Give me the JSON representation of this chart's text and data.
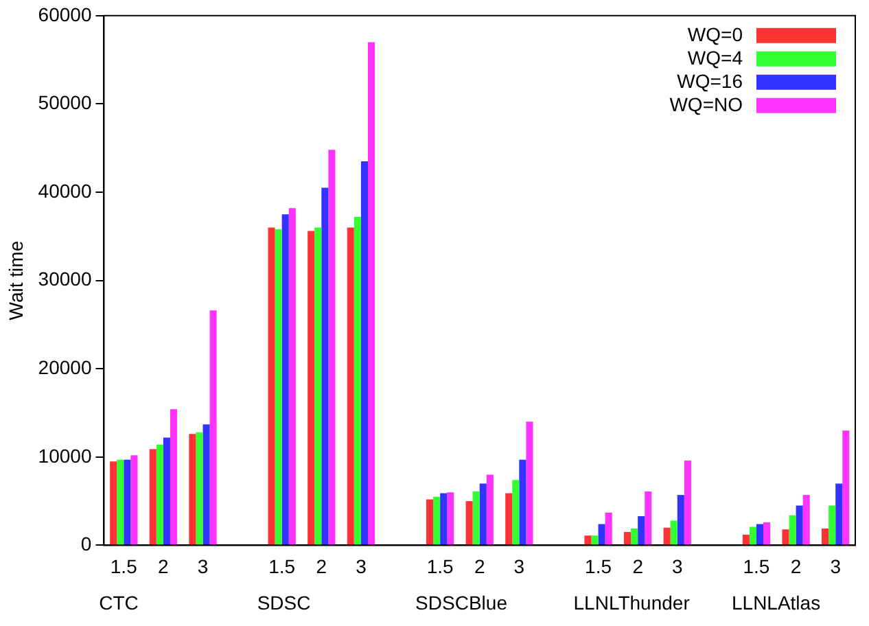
{
  "chart_data": {
    "type": "bar",
    "ylabel": "Wait time",
    "categories": [
      "1.5",
      "2",
      "3",
      null,
      "1.5",
      "2",
      "3",
      null,
      "1.5",
      "2",
      "3",
      null,
      "1.5",
      "2",
      "3",
      null,
      "1.5",
      "2",
      "3"
    ],
    "annotations": [
      "CTC",
      "SDSC",
      "SDSCBlue",
      "LLNLThunder",
      "LLNLAtlas"
    ],
    "series": [
      {
        "name": "WQ=0",
        "color": "#ff3333",
        "values": [
          9500,
          10900,
          12600,
          null,
          36000,
          35600,
          36000,
          null,
          5200,
          5000,
          5900,
          null,
          1100,
          1500,
          2000,
          null,
          1200,
          1800,
          1900
        ]
      },
      {
        "name": "WQ=4",
        "color": "#33ff33",
        "values": [
          9700,
          11400,
          12800,
          null,
          35800,
          36000,
          37200,
          null,
          5500,
          6100,
          7400,
          null,
          1100,
          1900,
          2800,
          null,
          2100,
          3400,
          4500
        ]
      },
      {
        "name": "WQ=16",
        "color": "#3333ff",
        "values": [
          9700,
          12200,
          13700,
          null,
          37500,
          40500,
          43500,
          null,
          5900,
          7000,
          9700,
          null,
          2400,
          3300,
          5700,
          null,
          2400,
          4500,
          7000
        ]
      },
      {
        "name": "WQ=NO",
        "color": "#ff33ff",
        "values": [
          10200,
          15400,
          26600,
          null,
          38200,
          44800,
          57000,
          null,
          6000,
          8000,
          14000,
          null,
          3700,
          6100,
          9600,
          null,
          2600,
          5700,
          13000
        ]
      }
    ],
    "ylim": [
      0,
      60000
    ],
    "yticks": [
      0,
      10000,
      20000,
      30000,
      40000,
      50000,
      60000
    ],
    "grid": false,
    "legend": "top right"
  }
}
